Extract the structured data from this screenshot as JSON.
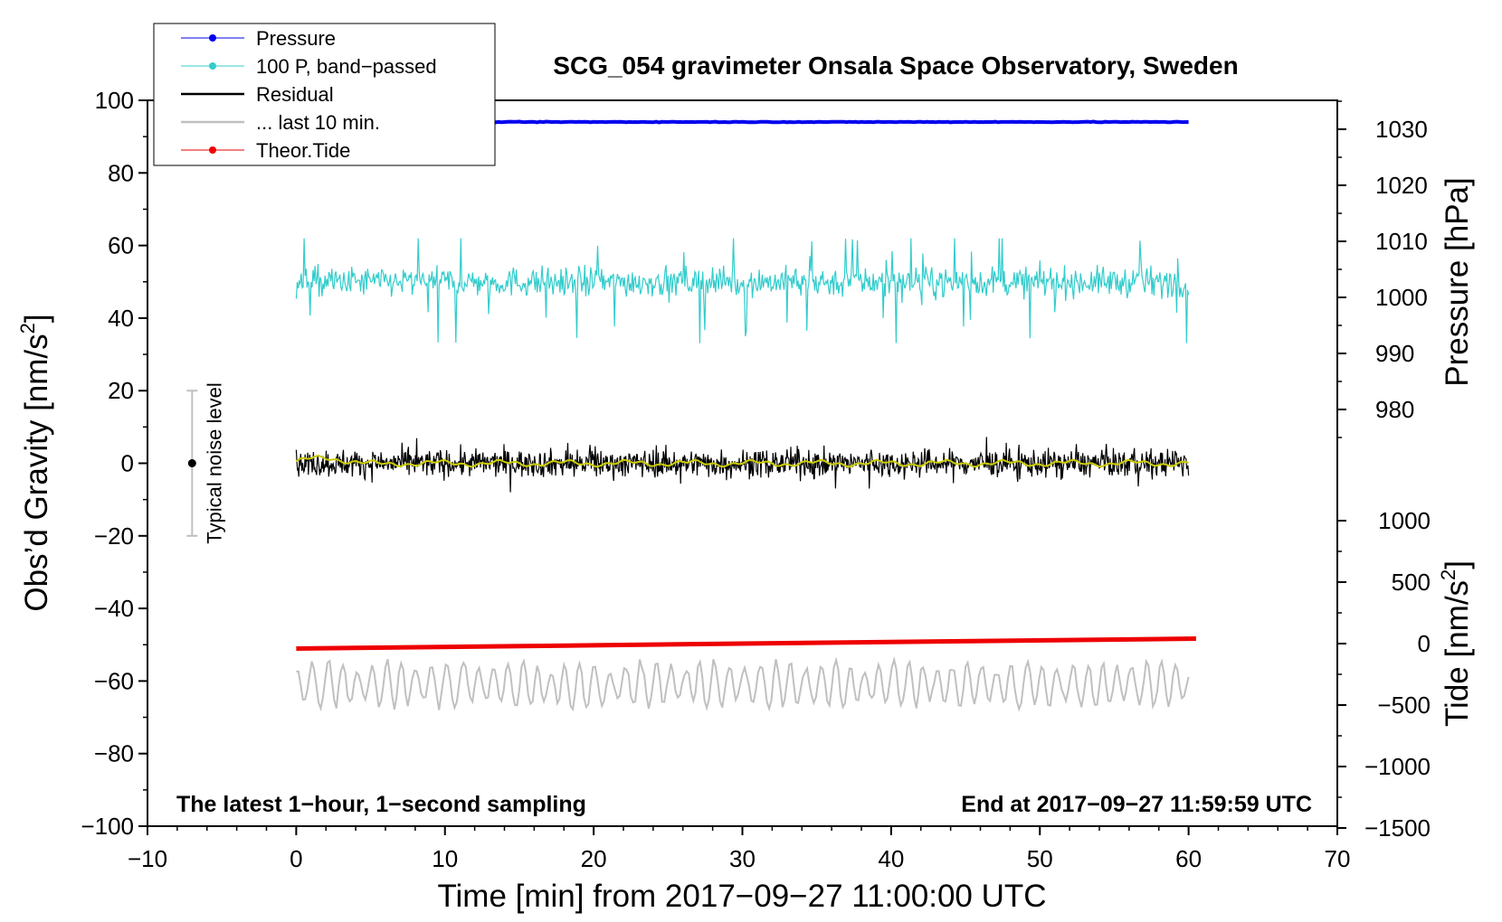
{
  "chart_data": {
    "type": "line",
    "title": "SCG_054 gravimeter Onsala Space Observatory, Sweden",
    "xlabel": "Time [min] from 2017−09−27 11:00:00 UTC",
    "ylabel_left": "Obs’d Gravity [nm/s",
    "ylabel_left_sup": "2",
    "ylabel_left_end": "]",
    "ylabel_right_pressure": "Pressure [hPa]",
    "ylabel_right_tide": "Tide [nm/s",
    "ylabel_right_tide_sup": "2",
    "ylabel_right_tide_end": "]",
    "xlim": [
      -10,
      70
    ],
    "ylim": [
      -100,
      100
    ],
    "x_ticks": [
      -10,
      0,
      10,
      20,
      30,
      40,
      50,
      60,
      70
    ],
    "x_tick_labels": [
      "−10",
      "0",
      "10",
      "20",
      "30",
      "40",
      "50",
      "60",
      "70"
    ],
    "y_ticks": [
      -100,
      -80,
      -60,
      -40,
      -20,
      0,
      20,
      40,
      60,
      80,
      100
    ],
    "y_tick_labels": [
      "−100",
      "−80",
      "−60",
      "−40",
      "−20",
      "0",
      "20",
      "40",
      "60",
      "80",
      "100"
    ],
    "pressure_ticks": [
      980,
      990,
      1000,
      1010,
      1020,
      1030
    ],
    "pressure_tick_labels": [
      "980",
      "990",
      "1000",
      "1010",
      "1020",
      "1030"
    ],
    "tide_ticks": [
      -1500,
      -1000,
      -500,
      0,
      500,
      1000
    ],
    "tide_tick_labels": [
      "−1500",
      "−1000",
      "−500",
      "0",
      "500",
      "1000"
    ],
    "annotations": {
      "bottom_left": "The latest 1−hour, 1−second sampling",
      "bottom_right": "End at 2017−09−27 11:59:59 UTC",
      "noise_label": "Typical noise level",
      "noise_range": [
        -20,
        20
      ],
      "noise_x": -7
    },
    "legend_position": "top-left",
    "series": [
      {
        "name": "Pressure",
        "color": "#0000ee",
        "axis": "pressure",
        "x_range": [
          0,
          60
        ],
        "approx_value": 1031.3
      },
      {
        "name": "100 P, band−passed",
        "color": "#33cccc",
        "axis": "gravity",
        "x_range": [
          0,
          60
        ],
        "approx_center": 50,
        "approx_range": [
          31,
          62
        ]
      },
      {
        "name": "Residual",
        "color": "#000000",
        "axis": "gravity",
        "x_range": [
          0,
          60
        ],
        "approx_center": 0,
        "approx_range": [
          -8,
          9
        ]
      },
      {
        "name": "... last 10 min.",
        "color": "#c0c0c0",
        "axis": "gravity",
        "x_range": [
          0,
          60
        ],
        "approx_center": -61,
        "approx_range": [
          -69,
          -54
        ]
      },
      {
        "name": "Theor.Tide",
        "color": "#ee0000",
        "axis": "tide",
        "x_range": [
          0,
          60.5
        ],
        "values_start_end": [
          -40,
          40
        ]
      }
    ],
    "smoothed_residual_color": "#cccc00"
  }
}
